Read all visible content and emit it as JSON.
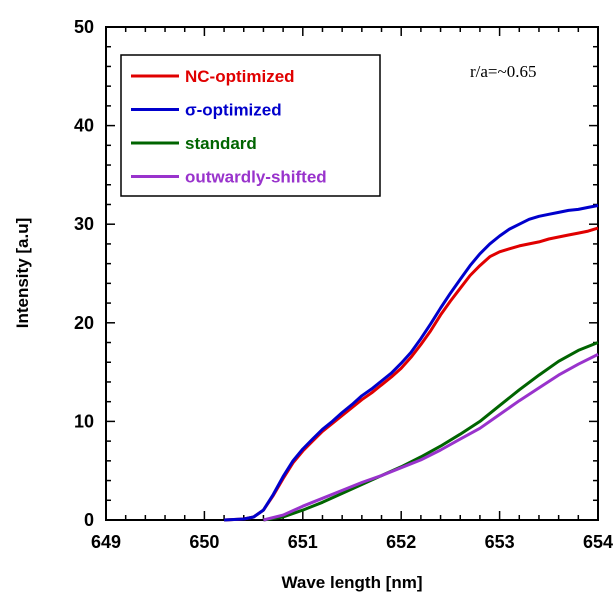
{
  "chart_data": {
    "type": "line",
    "title": "",
    "xlabel": "Wave length [nm]",
    "ylabel": "Intensity [a.u]",
    "xlim": [
      649,
      654
    ],
    "ylim": [
      0,
      50
    ],
    "xticks": [
      649,
      650,
      651,
      652,
      653,
      654
    ],
    "yticks": [
      0,
      10,
      20,
      30,
      40,
      50
    ],
    "xtick_labels": [
      "649",
      "650",
      "651",
      "652",
      "653",
      "654"
    ],
    "ytick_labels": [
      "0",
      "10",
      "20",
      "30",
      "40",
      "50"
    ],
    "grid": false,
    "legend_position": "top-left",
    "annotation": "r/a=~0.65",
    "series": [
      {
        "name": "NC-optimized",
        "color": "#e00000",
        "x": [
          650.2,
          650.4,
          650.5,
          650.6,
          650.7,
          650.8,
          650.9,
          651.0,
          651.1,
          651.2,
          651.3,
          651.4,
          651.5,
          651.6,
          651.7,
          651.8,
          651.9,
          652.0,
          652.1,
          652.2,
          652.3,
          652.4,
          652.5,
          652.6,
          652.7,
          652.8,
          652.9,
          653.0,
          653.1,
          653.2,
          653.3,
          653.4,
          653.5,
          653.6,
          653.7,
          653.8,
          653.9,
          654.0
        ],
        "y": [
          0.0,
          0.1,
          0.3,
          1.0,
          2.5,
          4.2,
          5.8,
          7.0,
          8.0,
          9.0,
          9.8,
          10.6,
          11.4,
          12.2,
          12.9,
          13.7,
          14.5,
          15.4,
          16.5,
          17.8,
          19.2,
          20.8,
          22.2,
          23.5,
          24.8,
          25.8,
          26.7,
          27.2,
          27.5,
          27.8,
          28.0,
          28.2,
          28.5,
          28.7,
          28.9,
          29.1,
          29.3,
          29.6
        ]
      },
      {
        "name": "σ-optimized",
        "color": "#0000cc",
        "x": [
          650.2,
          650.4,
          650.5,
          650.6,
          650.7,
          650.8,
          650.9,
          651.0,
          651.1,
          651.2,
          651.3,
          651.4,
          651.5,
          651.6,
          651.7,
          651.8,
          651.9,
          652.0,
          652.1,
          652.2,
          652.3,
          652.4,
          652.5,
          652.6,
          652.7,
          652.8,
          652.9,
          653.0,
          653.1,
          653.2,
          653.3,
          653.4,
          653.5,
          653.6,
          653.7,
          653.8,
          653.9,
          654.0
        ],
        "y": [
          0.0,
          0.1,
          0.3,
          1.0,
          2.6,
          4.4,
          6.0,
          7.2,
          8.2,
          9.2,
          10.0,
          10.9,
          11.7,
          12.6,
          13.3,
          14.1,
          14.9,
          15.9,
          17.0,
          18.4,
          19.9,
          21.5,
          23.0,
          24.4,
          25.8,
          27.0,
          28.0,
          28.8,
          29.5,
          30.0,
          30.5,
          30.8,
          31.0,
          31.2,
          31.4,
          31.5,
          31.7,
          31.9
        ]
      },
      {
        "name": "standard",
        "color": "#006400",
        "x": [
          650.6,
          650.8,
          651.0,
          651.2,
          651.4,
          651.6,
          651.8,
          652.0,
          652.2,
          652.4,
          652.6,
          652.8,
          653.0,
          653.2,
          653.4,
          653.6,
          653.8,
          654.0
        ],
        "y": [
          0.0,
          0.3,
          1.0,
          1.8,
          2.7,
          3.6,
          4.5,
          5.4,
          6.4,
          7.5,
          8.7,
          10.0,
          11.6,
          13.2,
          14.7,
          16.1,
          17.2,
          18.0
        ]
      },
      {
        "name": "outwardly-shifted",
        "color": "#9933cc",
        "x": [
          650.6,
          650.8,
          651.0,
          651.2,
          651.4,
          651.6,
          651.8,
          652.0,
          652.2,
          652.4,
          652.6,
          652.8,
          653.0,
          653.2,
          653.4,
          653.6,
          653.8,
          654.0
        ],
        "y": [
          0.0,
          0.5,
          1.4,
          2.2,
          3.0,
          3.8,
          4.5,
          5.3,
          6.1,
          7.1,
          8.2,
          9.3,
          10.7,
          12.1,
          13.4,
          14.7,
          15.8,
          16.8
        ]
      }
    ]
  }
}
